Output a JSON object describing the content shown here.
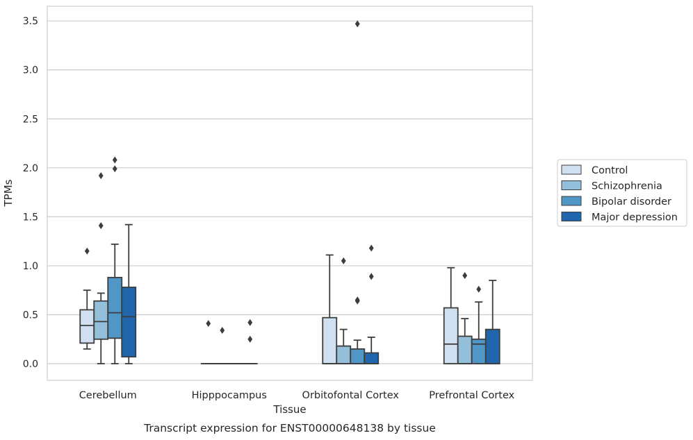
{
  "chart_data": {
    "type": "box",
    "title": "",
    "xlabel": "Tissue",
    "ylabel": "TPMs",
    "caption": "Transcript expression for ENST00000648138 by tissue",
    "ylim": [
      -0.17,
      3.65
    ],
    "yticks": [
      0.0,
      0.5,
      1.0,
      1.5,
      2.0,
      2.5,
      3.0,
      3.5
    ],
    "grid": "horizontal",
    "legend_position": "right",
    "categories": [
      "Cerebellum",
      "Hipppocampus",
      "Orbitofontal Cortex",
      "Prefrontal Cortex"
    ],
    "series": [
      {
        "name": "Control",
        "color": "#d1e0f0",
        "boxes": [
          {
            "whislo": 0.15,
            "q1": 0.21,
            "med": 0.39,
            "q3": 0.55,
            "whishi": 0.75,
            "fliers": [
              1.15
            ]
          },
          {
            "whislo": 0.0,
            "q1": 0.0,
            "med": 0.0,
            "q3": 0.0,
            "whishi": 0.0,
            "fliers": [
              0.41
            ]
          },
          {
            "whislo": 0.0,
            "q1": 0.0,
            "med": 0.0,
            "q3": 0.47,
            "whishi": 1.11,
            "fliers": []
          },
          {
            "whislo": 0.0,
            "q1": 0.0,
            "med": 0.2,
            "q3": 0.57,
            "whishi": 0.98,
            "fliers": []
          }
        ]
      },
      {
        "name": "Schizophrenia",
        "color": "#93bfdb",
        "boxes": [
          {
            "whislo": 0.0,
            "q1": 0.25,
            "med": 0.43,
            "q3": 0.64,
            "whishi": 0.72,
            "fliers": [
              1.41,
              1.92
            ]
          },
          {
            "whislo": 0.0,
            "q1": 0.0,
            "med": 0.0,
            "q3": 0.0,
            "whishi": 0.0,
            "fliers": [
              0.34
            ]
          },
          {
            "whislo": 0.0,
            "q1": 0.0,
            "med": 0.0,
            "q3": 0.18,
            "whishi": 0.35,
            "fliers": [
              1.05
            ]
          },
          {
            "whislo": 0.0,
            "q1": 0.0,
            "med": 0.0,
            "q3": 0.28,
            "whishi": 0.46,
            "fliers": [
              0.9
            ]
          }
        ]
      },
      {
        "name": "Bipolar disorder",
        "color": "#5096c6",
        "boxes": [
          {
            "whislo": 0.0,
            "q1": 0.26,
            "med": 0.52,
            "q3": 0.88,
            "whishi": 1.22,
            "fliers": [
              1.99,
              2.08
            ]
          },
          {
            "whislo": 0.0,
            "q1": 0.0,
            "med": 0.0,
            "q3": 0.0,
            "whishi": 0.0,
            "fliers": []
          },
          {
            "whislo": 0.0,
            "q1": 0.0,
            "med": 0.0,
            "q3": 0.15,
            "whishi": 0.24,
            "fliers": [
              0.64,
              0.65,
              3.47
            ]
          },
          {
            "whislo": 0.0,
            "q1": 0.0,
            "med": 0.2,
            "q3": 0.25,
            "whishi": 0.63,
            "fliers": [
              0.76
            ]
          }
        ]
      },
      {
        "name": "Major depression",
        "color": "#2166ac",
        "boxes": [
          {
            "whislo": 0.0,
            "q1": 0.07,
            "med": 0.48,
            "q3": 0.78,
            "whishi": 1.42,
            "fliers": []
          },
          {
            "whislo": 0.0,
            "q1": 0.0,
            "med": 0.0,
            "q3": 0.0,
            "whishi": 0.0,
            "fliers": [
              0.25,
              0.42
            ]
          },
          {
            "whislo": 0.0,
            "q1": 0.0,
            "med": 0.0,
            "q3": 0.11,
            "whishi": 0.27,
            "fliers": [
              0.89,
              1.18
            ]
          },
          {
            "whislo": 0.0,
            "q1": 0.0,
            "med": 0.0,
            "q3": 0.35,
            "whishi": 0.85,
            "fliers": []
          }
        ]
      }
    ]
  }
}
